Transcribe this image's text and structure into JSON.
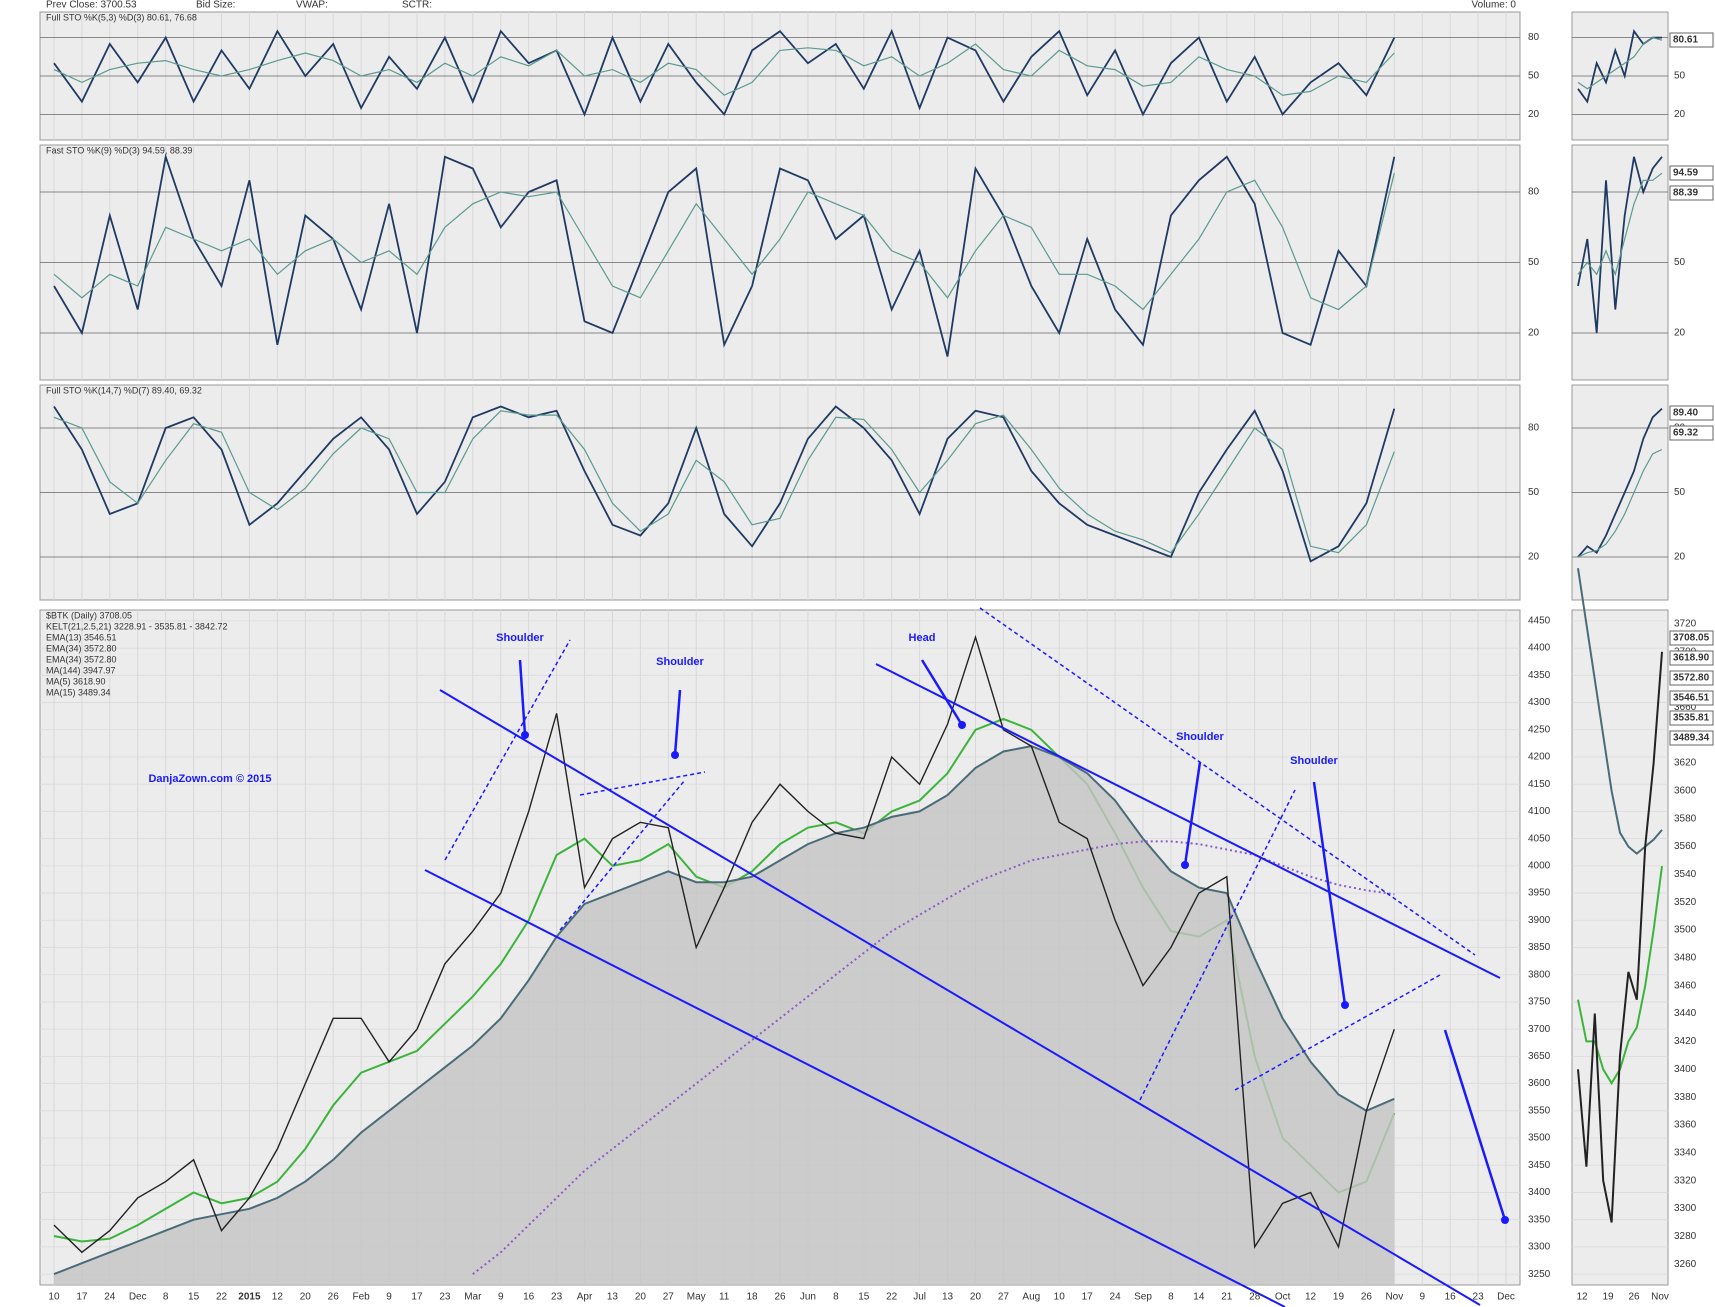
{
  "header": {
    "prev_close": "Prev Close:  3700.53",
    "bid_size": "Bid Size:",
    "vwap": "VWAP:",
    "sctr": "SCTR:",
    "volume": "Volume:  0"
  },
  "x_categories": [
    "10",
    "17",
    "24",
    "Dec",
    "8",
    "15",
    "22",
    "2015",
    "12",
    "20",
    "26",
    "Feb",
    "9",
    "17",
    "23",
    "Mar",
    "9",
    "16",
    "23",
    "Apr",
    "13",
    "20",
    "27",
    "May",
    "11",
    "18",
    "26",
    "Jun",
    "8",
    "15",
    "22",
    "Jul",
    "13",
    "20",
    "27",
    "Aug",
    "10",
    "17",
    "24",
    "Sep",
    "8",
    "14",
    "21",
    "28",
    "Oct",
    "12",
    "19",
    "26",
    "Nov",
    "9",
    "16",
    "23",
    "Dec"
  ],
  "zoom_x": [
    "12",
    "19",
    "26",
    "Nov"
  ],
  "chart_data": [
    {
      "type": "line",
      "title": "Full STO %K(5,3) %D(3) 80.61, 76.68",
      "ylim": [
        0,
        100
      ],
      "yticks": [
        20,
        50,
        80
      ],
      "grid": true,
      "series": [
        {
          "color": "#1f3a63",
          "values": [
            60,
            30,
            75,
            45,
            80,
            30,
            70,
            40,
            85,
            50,
            75,
            25,
            65,
            40,
            80,
            30,
            85,
            60,
            70,
            20,
            80,
            30,
            75,
            45,
            20,
            70,
            85,
            60,
            75,
            40,
            85,
            25,
            80,
            70,
            30,
            65,
            85,
            35,
            70,
            20,
            60,
            80,
            30,
            65,
            20,
            45,
            60,
            35,
            80
          ]
        },
        {
          "color": "#5b9a8e",
          "values": [
            55,
            45,
            55,
            60,
            62,
            55,
            50,
            55,
            62,
            68,
            62,
            50,
            55,
            45,
            60,
            50,
            65,
            58,
            70,
            50,
            55,
            45,
            60,
            55,
            35,
            45,
            70,
            72,
            70,
            58,
            65,
            50,
            60,
            75,
            55,
            50,
            70,
            58,
            55,
            42,
            45,
            65,
            55,
            50,
            35,
            38,
            50,
            45,
            68
          ]
        }
      ],
      "zoom": [
        {
          "color": "#1f3a63",
          "values": [
            40,
            30,
            60,
            45,
            70,
            50,
            85,
            75,
            80,
            80
          ]
        },
        {
          "color": "#5b9a8e",
          "values": [
            45,
            40,
            45,
            50,
            55,
            60,
            65,
            75,
            80,
            78
          ]
        }
      ],
      "value_boxes": [
        "80.61"
      ]
    },
    {
      "type": "line",
      "title": "Fast STO %K(9) %D(3) 94.59, 88.39",
      "ylim": [
        0,
        100
      ],
      "yticks": [
        20,
        50,
        80
      ],
      "grid": true,
      "series": [
        {
          "color": "#1f3a63",
          "values": [
            40,
            20,
            70,
            30,
            95,
            60,
            40,
            85,
            15,
            70,
            60,
            30,
            75,
            20,
            95,
            90,
            65,
            80,
            85,
            25,
            20,
            50,
            80,
            90,
            15,
            40,
            90,
            85,
            60,
            70,
            30,
            55,
            10,
            90,
            70,
            40,
            20,
            60,
            30,
            15,
            70,
            85,
            95,
            75,
            20,
            15,
            55,
            40,
            95
          ]
        },
        {
          "color": "#5b9a8e",
          "values": [
            45,
            35,
            45,
            40,
            65,
            60,
            55,
            60,
            45,
            55,
            60,
            50,
            55,
            45,
            65,
            75,
            80,
            78,
            80,
            60,
            40,
            35,
            55,
            75,
            60,
            45,
            60,
            80,
            75,
            70,
            55,
            50,
            35,
            55,
            70,
            65,
            45,
            45,
            40,
            30,
            45,
            60,
            80,
            85,
            65,
            35,
            30,
            40,
            88
          ]
        }
      ],
      "zoom": [
        {
          "color": "#1f3a63",
          "values": [
            40,
            60,
            20,
            85,
            30,
            70,
            95,
            80,
            90,
            95
          ]
        },
        {
          "color": "#5b9a8e",
          "values": [
            45,
            50,
            45,
            55,
            45,
            60,
            75,
            85,
            85,
            88
          ]
        }
      ],
      "value_boxes": [
        "94.59",
        "88.39"
      ]
    },
    {
      "type": "line",
      "title": "Full STO %K(14,7) %D(7) 89.40, 69.32",
      "ylim": [
        0,
        100
      ],
      "yticks": [
        20,
        50,
        80
      ],
      "grid": true,
      "series": [
        {
          "color": "#1f3a63",
          "values": [
            90,
            70,
            40,
            45,
            80,
            85,
            70,
            35,
            45,
            60,
            75,
            85,
            70,
            40,
            55,
            85,
            90,
            85,
            88,
            60,
            35,
            30,
            45,
            80,
            40,
            25,
            45,
            75,
            90,
            80,
            65,
            40,
            75,
            88,
            85,
            60,
            45,
            35,
            30,
            25,
            20,
            50,
            70,
            88,
            60,
            18,
            25,
            45,
            89
          ]
        },
        {
          "color": "#5b9a8e",
          "values": [
            85,
            80,
            55,
            45,
            65,
            82,
            78,
            50,
            42,
            52,
            68,
            80,
            75,
            50,
            50,
            75,
            88,
            86,
            86,
            70,
            45,
            32,
            40,
            65,
            55,
            35,
            38,
            65,
            85,
            84,
            70,
            50,
            65,
            82,
            86,
            70,
            52,
            40,
            32,
            28,
            22,
            40,
            60,
            80,
            70,
            25,
            22,
            35,
            69
          ]
        }
      ],
      "zoom": [
        {
          "color": "#1f3a63",
          "values": [
            20,
            25,
            22,
            30,
            40,
            50,
            60,
            75,
            85,
            89
          ]
        },
        {
          "color": "#5b9a8e",
          "values": [
            20,
            22,
            23,
            26,
            32,
            40,
            50,
            60,
            68,
            70
          ]
        }
      ],
      "value_boxes": [
        "89.40",
        "69.32"
      ]
    },
    {
      "type": "price",
      "title": "$BTK (Daily) 3708.05",
      "ylim": [
        3230,
        4470
      ],
      "yticks": [
        3250,
        3300,
        3350,
        3400,
        3450,
        3500,
        3550,
        3600,
        3650,
        3700,
        3750,
        3800,
        3850,
        3900,
        3950,
        4000,
        4050,
        4100,
        4150,
        4200,
        4250,
        4300,
        4350,
        4400,
        4450
      ],
      "legend_notes": [
        "KELT(21,2.5,21) 3228.91 - 3535.81 - 3842.72",
        "EMA(34) 3572.80",
        "MA(5) 3618.90",
        "MA(15) 3489.34"
      ],
      "annotations": [
        "Shoulder",
        "Shoulder",
        "Head",
        "Shoulder",
        "Shoulder",
        "DanjaZown.com © 2015"
      ],
      "series": [
        {
          "name": "EMA(13) 3546.51",
          "color": "#3cb43c",
          "values": [
            3320,
            3310,
            3315,
            3340,
            3370,
            3400,
            3380,
            3390,
            3420,
            3480,
            3560,
            3620,
            3640,
            3660,
            3710,
            3760,
            3820,
            3900,
            4020,
            4050,
            4000,
            4010,
            4040,
            3980,
            3960,
            3990,
            4040,
            4070,
            4080,
            4060,
            4100,
            4120,
            4170,
            4250,
            4270,
            4250,
            4200,
            4150,
            4060,
            3960,
            3880,
            3870,
            3900,
            3650,
            3500,
            3450,
            3400,
            3420,
            3546
          ]
        },
        {
          "name": "EMA(34) 3572.80",
          "color": "#4a6b78",
          "fill": "#c4c4c4",
          "values": [
            3250,
            3270,
            3290,
            3310,
            3330,
            3350,
            3360,
            3370,
            3390,
            3420,
            3460,
            3510,
            3550,
            3590,
            3630,
            3670,
            3720,
            3790,
            3870,
            3930,
            3950,
            3970,
            3990,
            3970,
            3970,
            3980,
            4010,
            4040,
            4060,
            4070,
            4090,
            4100,
            4130,
            4180,
            4210,
            4220,
            4200,
            4170,
            4120,
            4050,
            3990,
            3960,
            3950,
            3830,
            3720,
            3640,
            3580,
            3550,
            3572
          ]
        },
        {
          "name": "MA(144) 3947.97",
          "color": "#8a5cc8",
          "style": "dotted",
          "values": [
            null,
            null,
            null,
            null,
            null,
            null,
            null,
            null,
            null,
            null,
            null,
            null,
            null,
            null,
            null,
            3250,
            3290,
            3340,
            3390,
            3440,
            3480,
            3520,
            3560,
            3600,
            3640,
            3680,
            3720,
            3760,
            3800,
            3840,
            3880,
            3910,
            3940,
            3970,
            3990,
            4010,
            4020,
            4030,
            4040,
            4045,
            4045,
            4040,
            4030,
            4020,
            4000,
            3980,
            3965,
            3955,
            3948
          ]
        },
        {
          "name": "$BTK",
          "color": "#222222",
          "values": [
            3340,
            3290,
            3330,
            3390,
            3420,
            3460,
            3330,
            3390,
            3480,
            3600,
            3720,
            3720,
            3640,
            3700,
            3820,
            3880,
            3950,
            4100,
            4280,
            3960,
            4050,
            4080,
            4070,
            3850,
            3960,
            4080,
            4150,
            4100,
            4060,
            4050,
            4200,
            4150,
            4260,
            4420,
            4250,
            4220,
            4080,
            4050,
            3900,
            3780,
            3850,
            3950,
            3980,
            3300,
            3380,
            3400,
            3300,
            3550,
            3700
          ]
        }
      ],
      "zoom_ylim": [
        3245,
        3730
      ],
      "zoom_yticks": [
        3260,
        3280,
        3300,
        3320,
        3340,
        3360,
        3380,
        3400,
        3420,
        3440,
        3460,
        3480,
        3500,
        3520,
        3540,
        3560,
        3580,
        3600,
        3620,
        3640,
        3660,
        3680,
        3700,
        3720
      ],
      "zoom": [
        {
          "color": "#3cb43c",
          "values": [
            3450,
            3420,
            3420,
            3400,
            3390,
            3400,
            3420,
            3430,
            3460,
            3500,
            3546
          ]
        },
        {
          "color": "#4a6b78",
          "values": [
            3760,
            3720,
            3680,
            3640,
            3600,
            3570,
            3560,
            3555,
            3560,
            3565,
            3572
          ]
        },
        {
          "color": "#222222",
          "values": [
            3400,
            3330,
            3440,
            3320,
            3290,
            3410,
            3470,
            3450,
            3560,
            3620,
            3700
          ]
        }
      ],
      "value_boxes": [
        "3708.05",
        "3618.90",
        "3572.80",
        "3546.51",
        "3535.81",
        "3489.34"
      ]
    }
  ]
}
